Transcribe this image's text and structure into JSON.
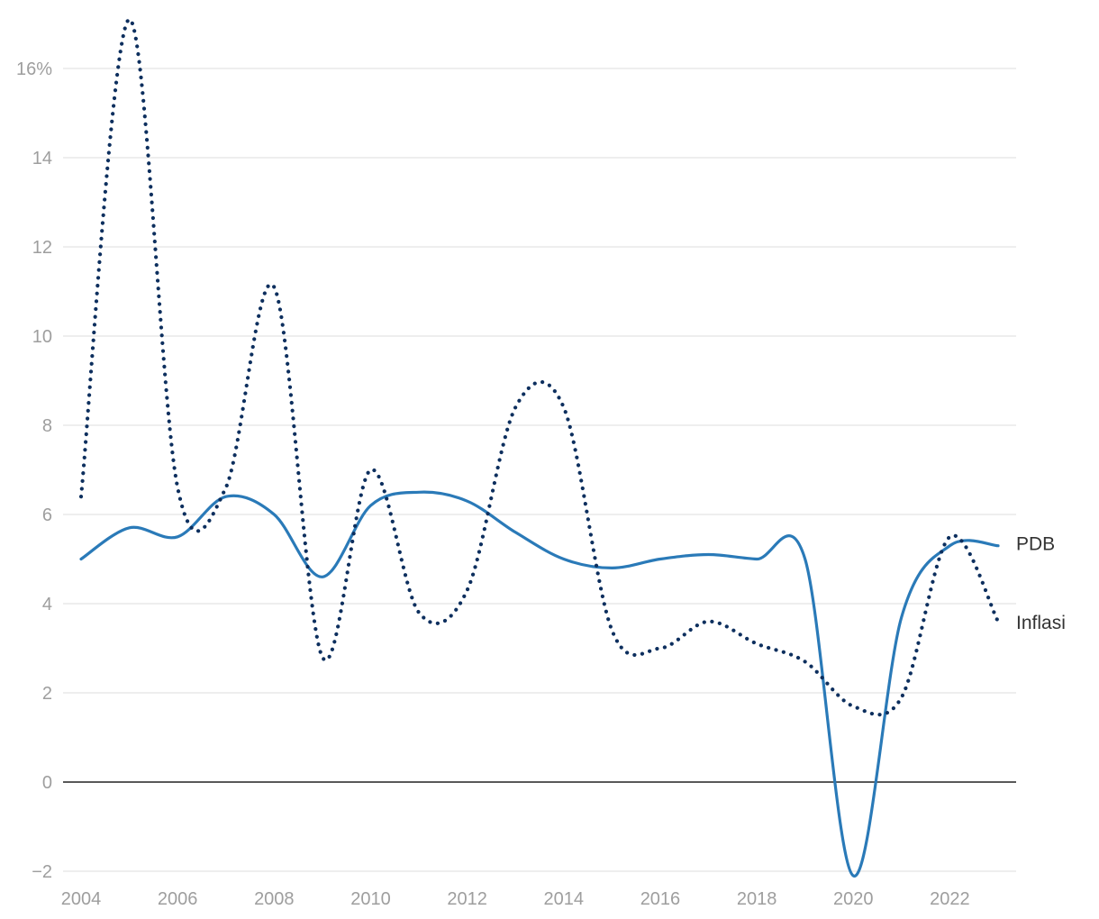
{
  "chart_data": {
    "type": "line",
    "title": "",
    "xlabel": "",
    "ylabel": "",
    "x": [
      2004,
      2005,
      2006,
      2007,
      2008,
      2009,
      2010,
      2011,
      2012,
      2013,
      2014,
      2015,
      2016,
      2017,
      2018,
      2019,
      2020,
      2021,
      2022,
      2023
    ],
    "xlim": [
      2004,
      2023.4
    ],
    "ylim": [
      -2,
      17
    ],
    "x_ticks": [
      2004,
      2006,
      2008,
      2010,
      2012,
      2014,
      2016,
      2018,
      2020,
      2022
    ],
    "x_tick_labels": [
      "2004",
      "2006",
      "2008",
      "2010",
      "2012",
      "2014",
      "2016",
      "2018",
      "2020",
      "2022"
    ],
    "y_ticks": [
      -2,
      0,
      2,
      4,
      6,
      8,
      10,
      12,
      14,
      16
    ],
    "y_tick_labels": [
      "−2",
      "0",
      "2",
      "4",
      "6",
      "8",
      "10",
      "12",
      "14",
      "16%"
    ],
    "grid": true,
    "series": [
      {
        "name": "PDB",
        "label": "PDB",
        "style": "solid",
        "color": "#2a7ab8",
        "values": [
          5.0,
          5.7,
          5.5,
          6.4,
          6.0,
          4.6,
          6.2,
          6.5,
          6.3,
          5.6,
          5.0,
          4.8,
          5.0,
          5.1,
          5.0,
          5.0,
          -2.1,
          3.7,
          5.3,
          5.3
        ]
      },
      {
        "name": "Inflasi",
        "label": "Inflasi",
        "style": "dotted",
        "color": "#0d2f5e",
        "values": [
          6.4,
          17.1,
          6.6,
          6.6,
          11.1,
          2.8,
          7.0,
          3.8,
          4.3,
          8.4,
          8.4,
          3.4,
          3.0,
          3.6,
          3.1,
          2.7,
          1.7,
          1.9,
          5.5,
          3.6
        ]
      }
    ]
  }
}
